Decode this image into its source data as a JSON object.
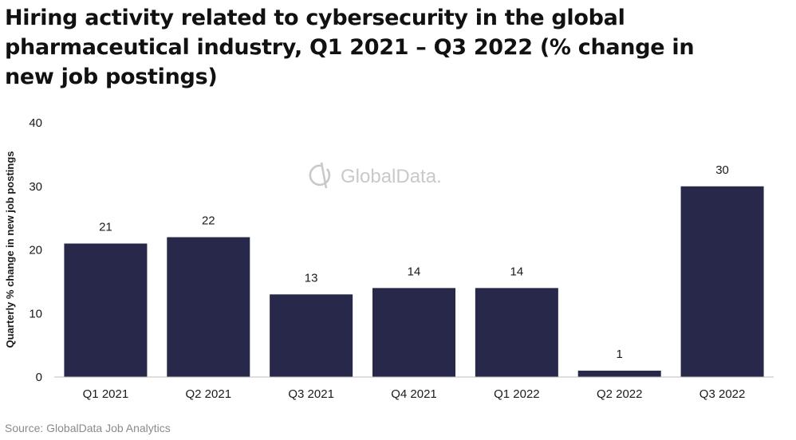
{
  "title": "Hiring activity related to cybersecurity in the global pharmaceutical industry, Q1 2021 – Q3 2022 (% change in new job postings)",
  "source": "Source: GlobalData Job Analytics",
  "watermark": {
    "text": "GlobalData.",
    "icon": "globaldata-logo-icon",
    "color": "#c9c9c9"
  },
  "colors": {
    "bar": "#27284a",
    "axis": "#bdbdbd",
    "text": "#1a1a1a"
  },
  "chart_data": {
    "type": "bar",
    "title": "",
    "xlabel": "",
    "ylabel": "Quarterly % change in new job postings",
    "categories": [
      "Q1 2021",
      "Q2 2021",
      "Q3 2021",
      "Q4 2021",
      "Q1 2022",
      "Q2 2022",
      "Q3 2022"
    ],
    "values": [
      21,
      22,
      13,
      14,
      14,
      1,
      30
    ],
    "ylim": [
      0,
      40
    ],
    "yticks": [
      0,
      10,
      20,
      30,
      40
    ],
    "grid": false,
    "data_labels": true,
    "legend": "none"
  }
}
